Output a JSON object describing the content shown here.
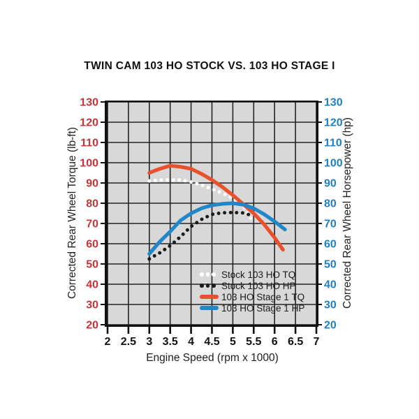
{
  "chart_data": {
    "type": "line",
    "title": "TWIN CAM 103 HO STOCK VS. 103 HO STAGE I",
    "xlabel": "Engine Speed (rpm x 1000)",
    "ylabel_left": "Corrected Rear Wheel Torque (lb-ft)",
    "ylabel_right": "Corrected Rear Wheel Horsepower (hp)",
    "xlim": [
      2,
      7
    ],
    "ylim": [
      20,
      130
    ],
    "x_ticks": [
      2,
      2.5,
      3,
      3.5,
      4,
      4.5,
      5,
      5.5,
      6,
      6.5,
      7
    ],
    "y_ticks": [
      20,
      30,
      40,
      50,
      60,
      70,
      80,
      90,
      100,
      110,
      120,
      130
    ],
    "grid": true,
    "legend_position": "inside-bottom-right",
    "colors": {
      "plot_bg": "#d8d8d8",
      "grid": "#232323",
      "border": "#111111",
      "left_axis_labels": "#c53438",
      "right_axis_labels": "#2080c0",
      "x_axis_labels": "#111111"
    },
    "series": [
      {
        "name": "Stock 103 HO TQ",
        "style": "dotted",
        "color": "#ffffff",
        "axis": "left",
        "points": [
          [
            3.0,
            91
          ],
          [
            3.25,
            91.5
          ],
          [
            3.5,
            91.5
          ],
          [
            3.75,
            91.5
          ],
          [
            4.0,
            90.5
          ],
          [
            4.25,
            89
          ],
          [
            4.5,
            87
          ],
          [
            4.75,
            85
          ],
          [
            5.0,
            82.5
          ],
          [
            5.25,
            78.5
          ],
          [
            5.45,
            72
          ]
        ]
      },
      {
        "name": "Stock 103 HO HP",
        "style": "dotted",
        "color": "#1b1b1b",
        "axis": "right",
        "points": [
          [
            3.0,
            52.5
          ],
          [
            3.25,
            55.5
          ],
          [
            3.5,
            59
          ],
          [
            3.75,
            63.5
          ],
          [
            4.0,
            68.5
          ],
          [
            4.25,
            72
          ],
          [
            4.5,
            74.5
          ],
          [
            4.75,
            75.3
          ],
          [
            5.0,
            75.4
          ],
          [
            5.25,
            75.2
          ],
          [
            5.45,
            74
          ]
        ]
      },
      {
        "name": "103 HO Stage 1 TQ",
        "style": "solid",
        "color": "#e8512b",
        "axis": "left",
        "points": [
          [
            3.0,
            95
          ],
          [
            3.25,
            97
          ],
          [
            3.5,
            98.5
          ],
          [
            3.75,
            98
          ],
          [
            4.0,
            97
          ],
          [
            4.25,
            94.5
          ],
          [
            4.5,
            91.5
          ],
          [
            4.75,
            88
          ],
          [
            5.0,
            84
          ],
          [
            5.25,
            79.5
          ],
          [
            5.5,
            75
          ],
          [
            5.75,
            69.5
          ],
          [
            6.0,
            63
          ],
          [
            6.2,
            57
          ]
        ]
      },
      {
        "name": "103 HO Stage 1 HP",
        "style": "solid",
        "color": "#2287c9",
        "axis": "right",
        "points": [
          [
            3.0,
            55
          ],
          [
            3.25,
            61
          ],
          [
            3.5,
            66
          ],
          [
            3.75,
            71.5
          ],
          [
            4.0,
            75
          ],
          [
            4.25,
            77.5
          ],
          [
            4.5,
            79
          ],
          [
            4.75,
            79.7
          ],
          [
            5.0,
            80
          ],
          [
            5.25,
            79.3
          ],
          [
            5.5,
            77.5
          ],
          [
            5.75,
            74.5
          ],
          [
            6.0,
            71
          ],
          [
            6.25,
            67
          ]
        ]
      }
    ]
  }
}
